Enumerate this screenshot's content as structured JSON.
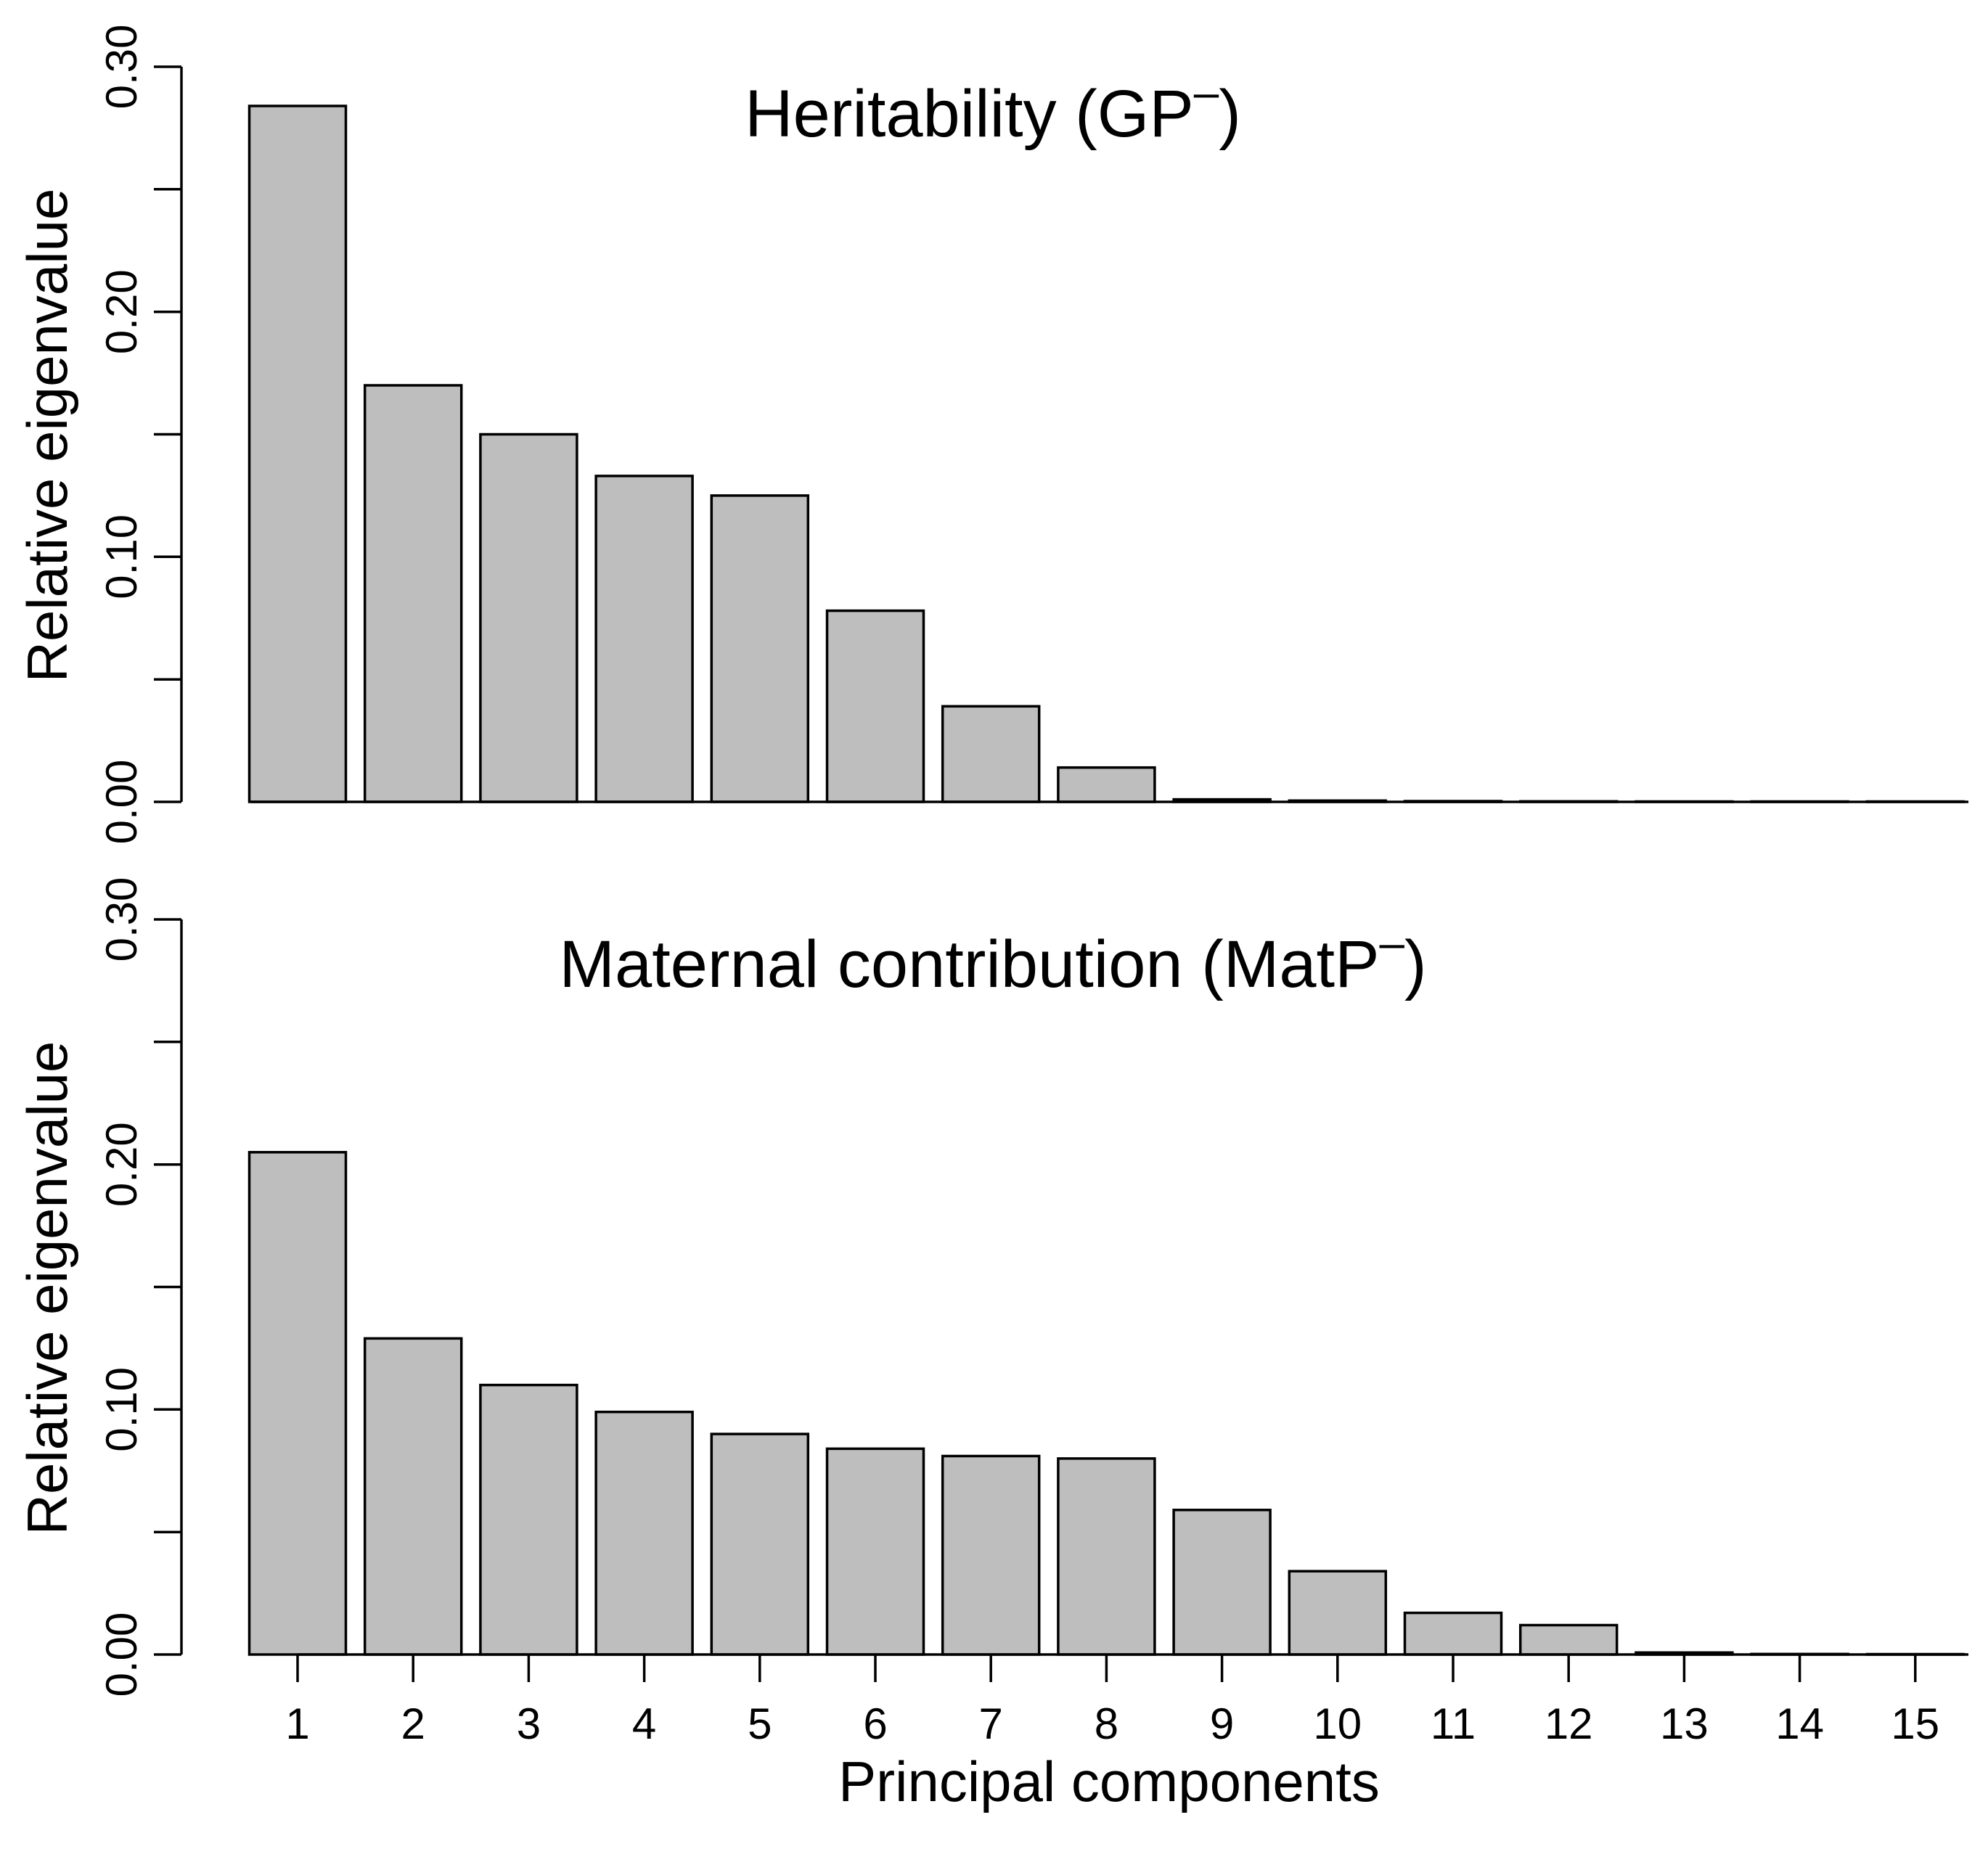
{
  "chart_data": [
    {
      "type": "bar",
      "title": "Heritability (GP⁻)",
      "title_main": "Heritability (GP",
      "title_sup": "–",
      "title_close": ")",
      "xlabel": "",
      "ylabel": "Relative eigenvalue",
      "ylim": [
        0,
        0.3
      ],
      "yticks": [
        "0.00",
        "0.10",
        "0.20",
        "0.30"
      ],
      "ytick_values": [
        0,
        0.05,
        0.1,
        0.15,
        0.2,
        0.25,
        0.3
      ],
      "categories": [
        "1",
        "2",
        "3",
        "4",
        "5",
        "6",
        "7",
        "8",
        "9",
        "10",
        "11",
        "12",
        "13",
        "14",
        "15"
      ],
      "values": [
        0.284,
        0.17,
        0.15,
        0.133,
        0.125,
        0.078,
        0.039,
        0.014,
        0.001,
        0.0005,
        0.0003,
        0.0002,
        0.0001,
        0.0001,
        0.0001
      ],
      "show_xticks": false
    },
    {
      "type": "bar",
      "title": "Maternal contribution (MatP⁻)",
      "title_main": "Maternal contribution (MatP",
      "title_sup": "–",
      "title_close": ")",
      "xlabel": "Principal components",
      "ylabel": "Relative eigenvalue",
      "ylim": [
        0,
        0.3
      ],
      "yticks": [
        "0.00",
        "0.10",
        "0.20",
        "0.30"
      ],
      "ytick_values": [
        0,
        0.05,
        0.1,
        0.15,
        0.2,
        0.25,
        0.3
      ],
      "categories": [
        "1",
        "2",
        "3",
        "4",
        "5",
        "6",
        "7",
        "8",
        "9",
        "10",
        "11",
        "12",
        "13",
        "14",
        "15"
      ],
      "values": [
        0.205,
        0.129,
        0.11,
        0.099,
        0.09,
        0.084,
        0.081,
        0.08,
        0.059,
        0.034,
        0.017,
        0.012,
        0.0008,
        0.0002,
        0.0001
      ],
      "show_xticks": true
    }
  ]
}
